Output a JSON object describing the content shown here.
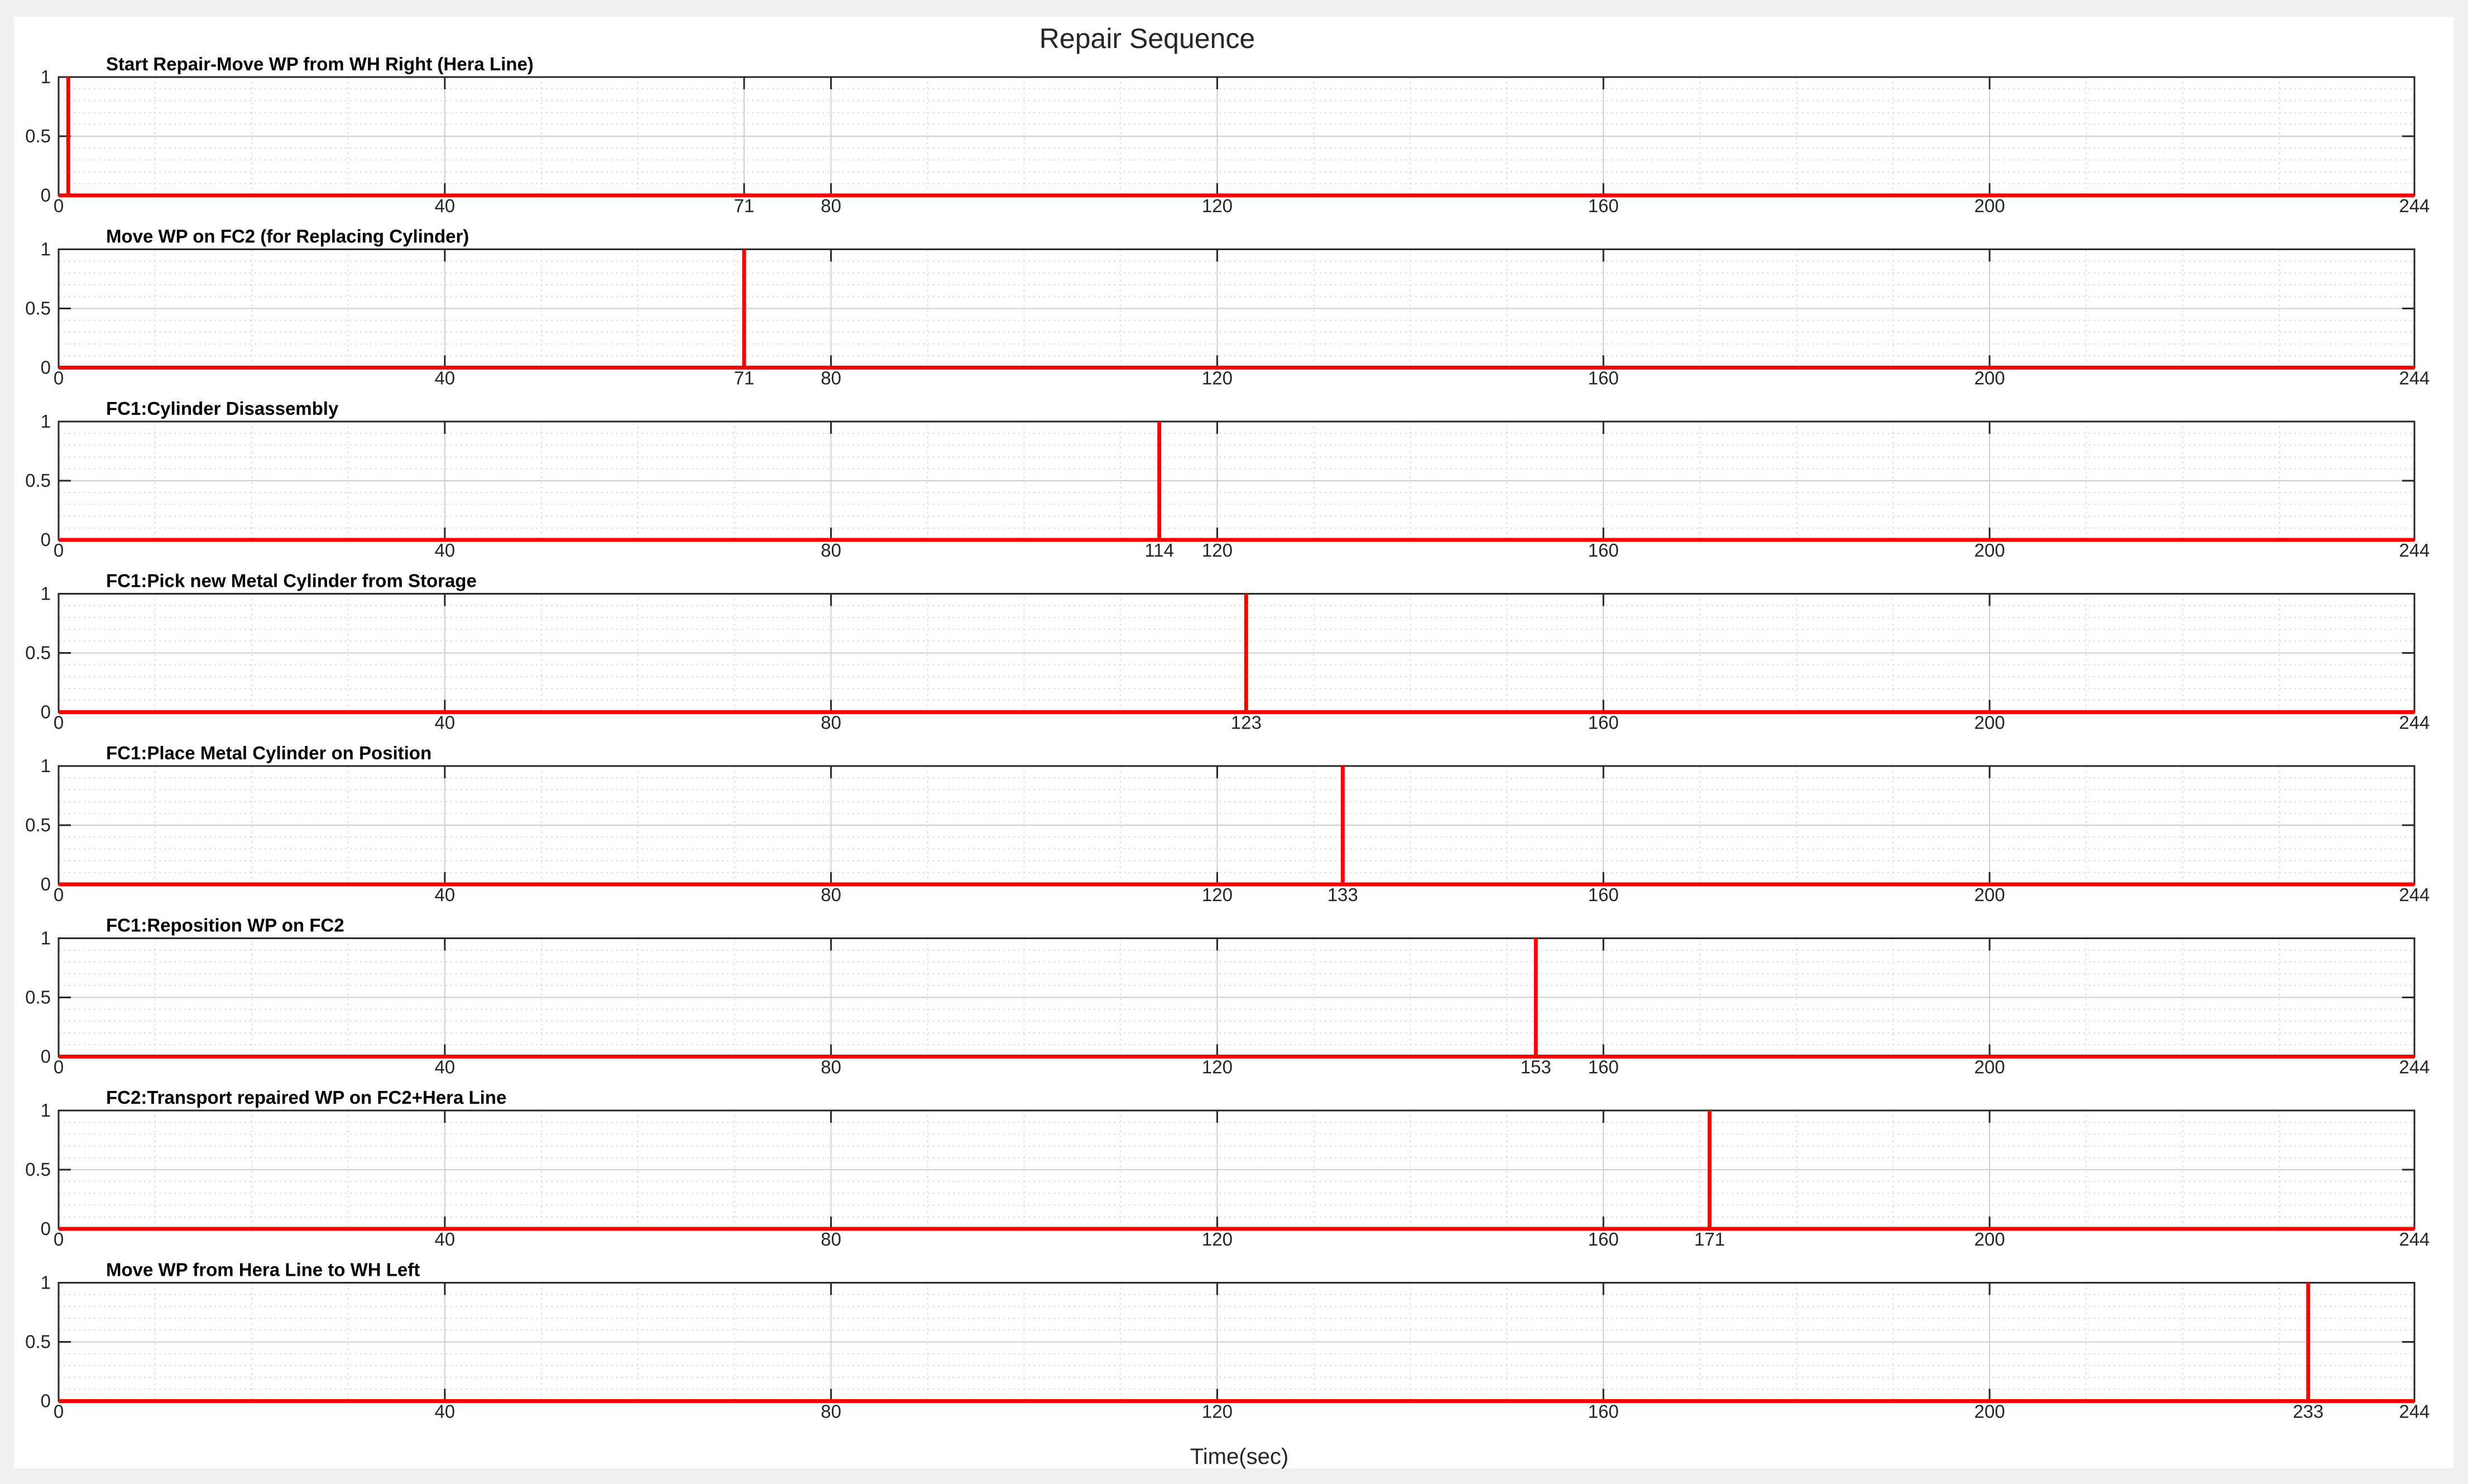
{
  "figure": {
    "title": "Repair Sequence",
    "xlabel": "Time(sec)"
  },
  "chart_data": {
    "type": "line",
    "title": "Repair Sequence",
    "xlabel": "Time(sec)",
    "ylabel": "",
    "xlim": [
      0,
      244
    ],
    "ylim": [
      0,
      1
    ],
    "yticks": [
      "0",
      "0.5",
      "1"
    ],
    "grid": true,
    "line_color": "#ff0000",
    "subplots": [
      {
        "title": "Start Repair-Move WP from WH Right (Hera Line)",
        "event_time": 1,
        "xticks": [
          0,
          40,
          71,
          80,
          120,
          160,
          200,
          244
        ]
      },
      {
        "title": "Move WP on FC2 (for Replacing Cylinder)",
        "event_time": 71,
        "xticks": [
          0,
          40,
          71,
          80,
          120,
          160,
          200,
          244
        ]
      },
      {
        "title": "FC1:Cylinder Disassembly",
        "event_time": 114,
        "xticks": [
          0,
          40,
          80,
          114,
          120,
          160,
          200,
          244
        ]
      },
      {
        "title": "FC1:Pick new Metal Cylinder from Storage",
        "event_time": 123,
        "xticks": [
          0,
          40,
          80,
          123,
          160,
          200,
          244
        ]
      },
      {
        "title": "FC1:Place Metal Cylinder on Position",
        "event_time": 133,
        "xticks": [
          0,
          40,
          80,
          120,
          133,
          160,
          200,
          244
        ]
      },
      {
        "title": "FC1:Reposition WP on FC2",
        "event_time": 153,
        "xticks": [
          0,
          40,
          80,
          120,
          153,
          160,
          200,
          244
        ]
      },
      {
        "title": "FC2:Transport repaired WP on FC2+Hera Line",
        "event_time": 171,
        "xticks": [
          0,
          40,
          80,
          120,
          160,
          171,
          200,
          244
        ]
      },
      {
        "title": "Move WP from Hera Line to WH Left",
        "event_time": 233,
        "xticks": [
          0,
          40,
          80,
          120,
          160,
          200,
          233,
          244
        ]
      }
    ]
  }
}
